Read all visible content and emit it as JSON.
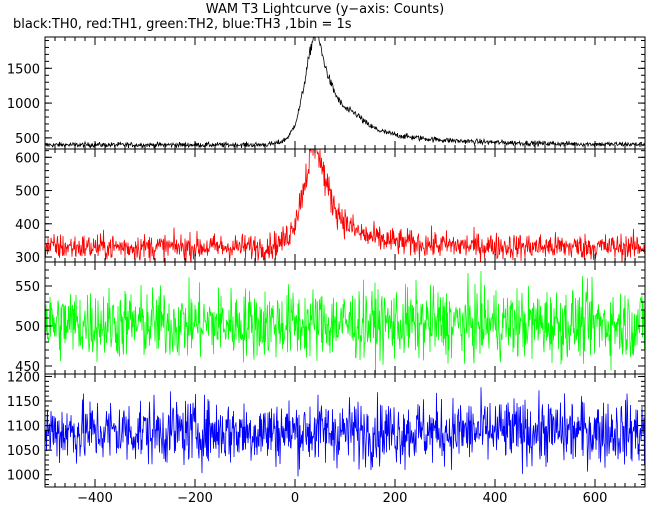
{
  "title": "WAM T3 Lightcurve (y−axis: Counts)",
  "subtitle": "black:TH0, red:TH1, green:TH2, blue:TH3 ,1bin = 1s",
  "chart_data": {
    "type": "line",
    "title": "WAM T3 Lightcurve (y−axis: Counts)",
    "subtitle": "black:TH0, red:TH1, green:TH2, blue:TH3 ,1bin = 1s",
    "xlabel": "",
    "xlim": [
      -500,
      700
    ],
    "x_ticks": [
      -400,
      -200,
      0,
      200,
      400,
      600
    ],
    "x_tick_labels": [
      "−400",
      "−200",
      "0",
      "200",
      "400",
      "600"
    ],
    "grid": false,
    "panels": [
      {
        "name": "TH0",
        "color": "#000000",
        "ylim": [
          340,
          1950
        ],
        "y_ticks": [
          500,
          1000,
          1500
        ],
        "baseline": 400,
        "noise": 18,
        "bursts": [
          {
            "center": 45,
            "height": 1300,
            "rise": 22,
            "decay": 35,
            "tail_height": 330,
            "tail_decay": 160
          },
          {
            "center": 125,
            "height": 100,
            "rise": 15,
            "decay": 25
          }
        ]
      },
      {
        "name": "TH1",
        "color": "#ff0000",
        "ylim": [
          285,
          625
        ],
        "y_ticks": [
          300,
          400,
          500,
          600
        ],
        "baseline": 330,
        "noise": 20,
        "bursts": [
          {
            "center": 45,
            "height": 250,
            "rise": 25,
            "decay": 30,
            "tail_height": 60,
            "tail_decay": 110
          }
        ]
      },
      {
        "name": "TH2",
        "color": "#00ff00",
        "ylim": [
          440,
          580
        ],
        "y_ticks": [
          450,
          500,
          550
        ],
        "baseline": 503,
        "noise": 22,
        "bursts": []
      },
      {
        "name": "TH3",
        "color": "#0000ff",
        "ylim": [
          975,
          1205
        ],
        "y_ticks": [
          1000,
          1050,
          1100,
          1150,
          1200
        ],
        "baseline": 1088,
        "noise": 33,
        "bursts": []
      }
    ]
  }
}
